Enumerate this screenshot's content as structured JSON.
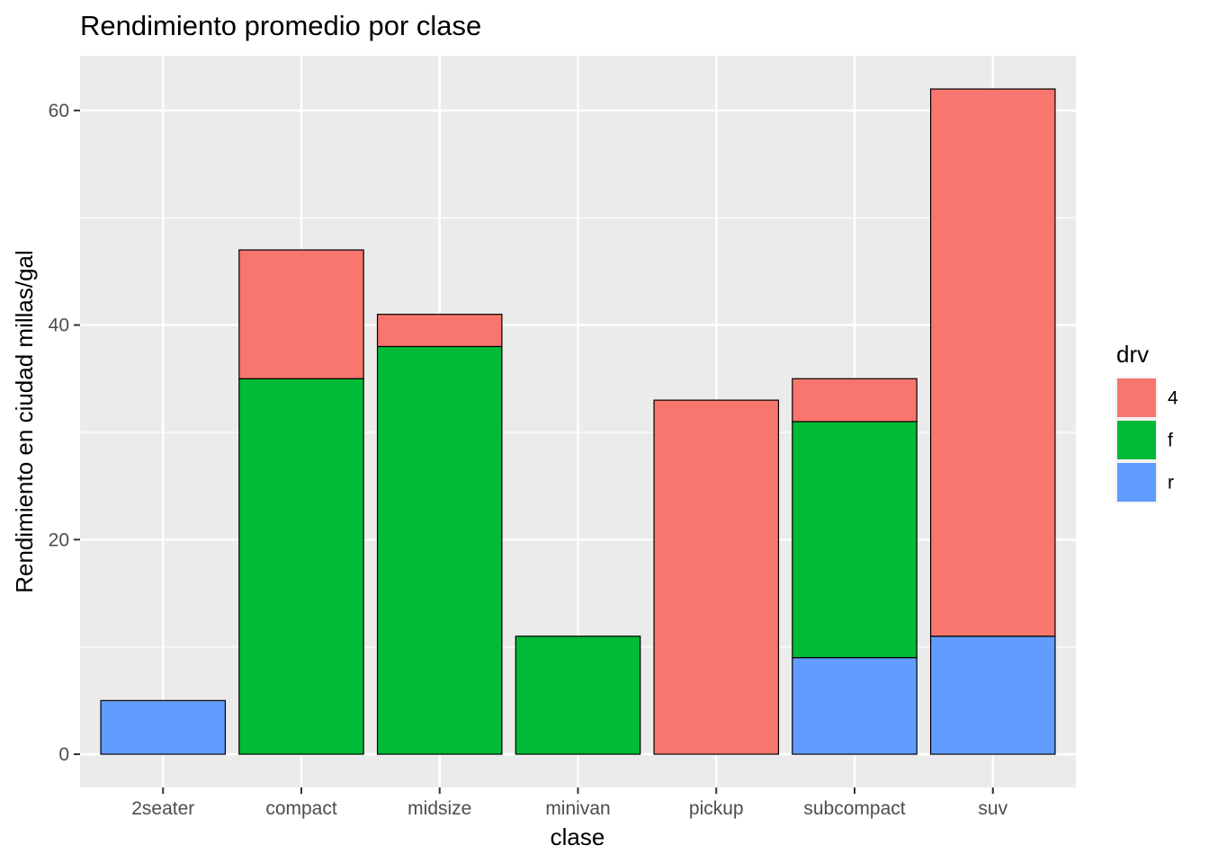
{
  "chart_data": {
    "type": "bar",
    "stacked": true,
    "title": "Rendimiento promedio por clase",
    "xlabel": "clase",
    "ylabel": "Rendimiento en ciudad millas/gal",
    "categories": [
      "2seater",
      "compact",
      "midsize",
      "minivan",
      "pickup",
      "subcompact",
      "suv"
    ],
    "series": [
      {
        "name": "4",
        "color": "#F8766D",
        "values": [
          0,
          12,
          3,
          0,
          33,
          4,
          51
        ]
      },
      {
        "name": "f",
        "color": "#00BA38",
        "values": [
          0,
          35,
          38,
          11,
          0,
          22,
          0
        ]
      },
      {
        "name": "r",
        "color": "#619CFF",
        "values": [
          5,
          0,
          0,
          0,
          0,
          9,
          11
        ]
      }
    ],
    "totals": [
      5,
      47,
      41,
      11,
      33,
      35,
      62
    ],
    "ylim": [
      -3.1,
      65.1
    ],
    "yticks": [
      0,
      20,
      40,
      60
    ],
    "grid": true,
    "legend": {
      "title": "drv",
      "position": "right"
    }
  }
}
